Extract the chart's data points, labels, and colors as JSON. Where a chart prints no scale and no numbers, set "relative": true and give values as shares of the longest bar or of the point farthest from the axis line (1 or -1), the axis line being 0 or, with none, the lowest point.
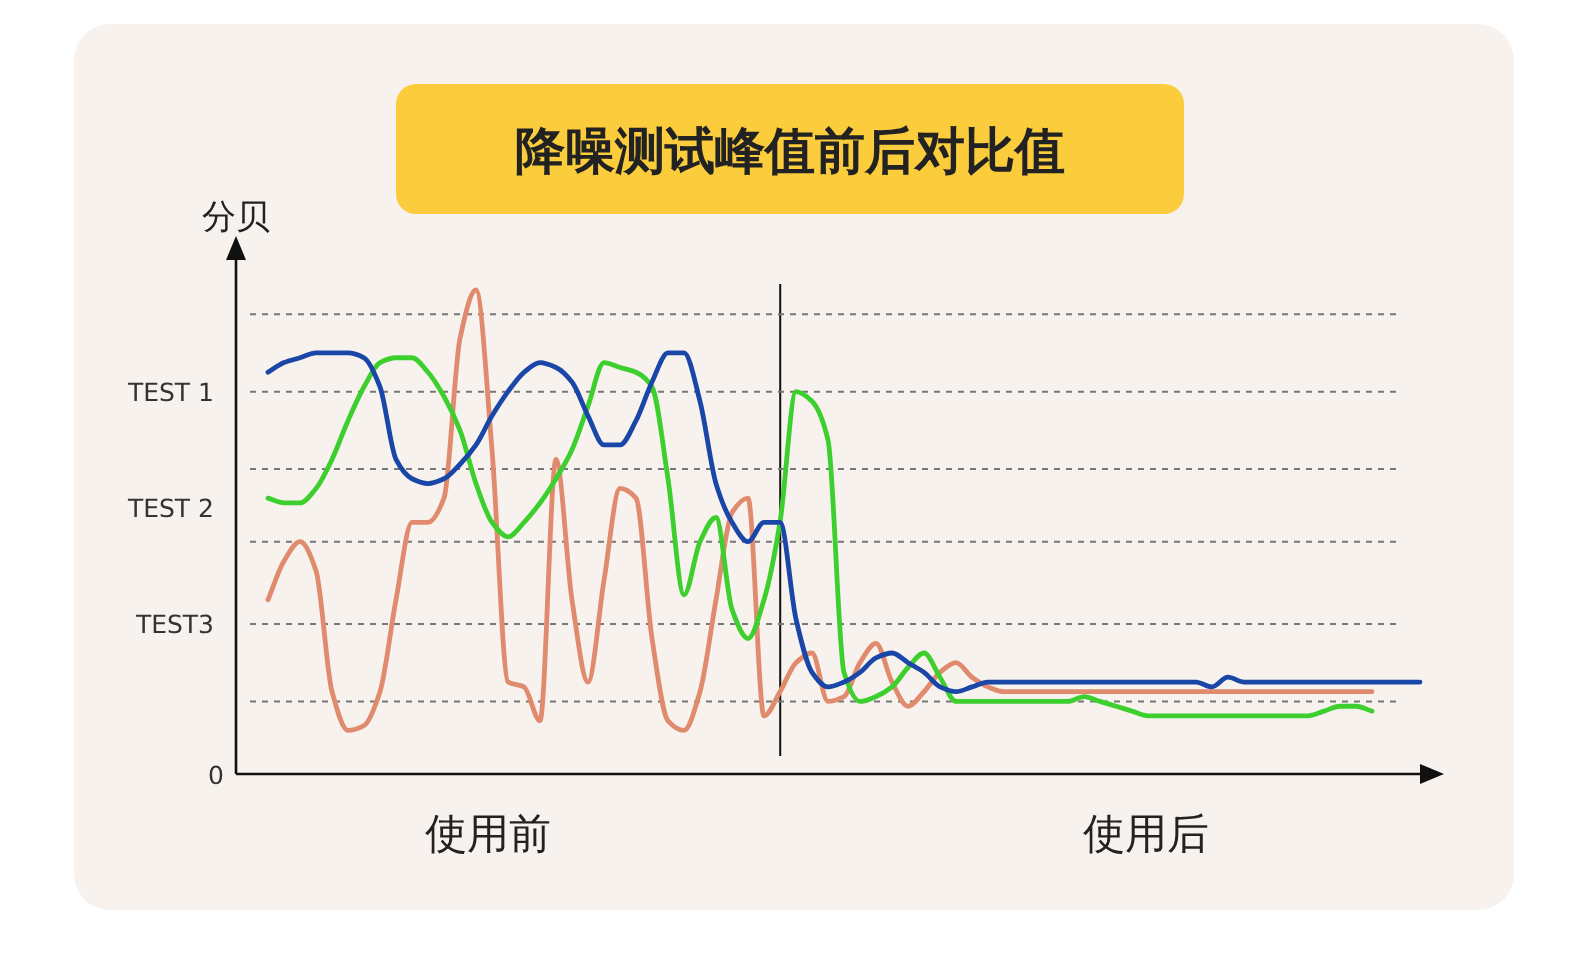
{
  "chart_data": {
    "type": "line",
    "title": "降噪测试峰值前后对比值",
    "ylabel": "分贝",
    "relative": true,
    "grid": false,
    "line_style": "solid",
    "marker": "none",
    "categories": [
      null,
      null,
      null,
      null,
      null,
      null,
      null,
      null,
      null,
      null,
      null,
      null,
      null,
      null,
      null,
      null,
      null,
      null,
      null,
      null,
      null,
      null,
      null,
      null,
      null,
      null,
      null,
      null,
      null,
      null,
      null,
      null,
      null,
      null,
      null,
      null,
      null,
      null,
      null,
      null,
      null,
      null,
      null,
      null,
      null,
      null,
      null,
      null,
      null,
      null,
      null,
      null,
      null,
      null,
      null,
      null,
      null,
      null,
      null,
      null,
      null,
      null,
      null,
      null,
      null,
      null,
      null,
      null,
      null,
      null,
      null,
      null,
      null,
      null
    ],
    "series": [
      {
        "color": "#e08a6e",
        "values": [
          null,
          0.36,
          0.44,
          0.48,
          0.42,
          0.17,
          0.09,
          0.1,
          0.17,
          0.36,
          0.52,
          0.52,
          0.57,
          0.9,
          1.0,
          0.67,
          0.19,
          0.18,
          0.11,
          0.65,
          0.36,
          0.19,
          0.4,
          0.59,
          0.57,
          0.28,
          0.11,
          0.09,
          0.17,
          0.36,
          0.54,
          0.57,
          0.12,
          0.17,
          0.23,
          0.25,
          0.15,
          0.16,
          0.23,
          0.27,
          0.19,
          0.14,
          0.17,
          0.21,
          0.23,
          0.2,
          0.18,
          0.17,
          0.17,
          0.17,
          0.17,
          0.17,
          0.17,
          0.17,
          0.17,
          0.17,
          0.17,
          0.17,
          0.17,
          0.17,
          0.17,
          0.17,
          0.17,
          0.17,
          0.17,
          0.17,
          0.17,
          0.17,
          0.17,
          0.17,
          0.17,
          null,
          null,
          null
        ]
      },
      {
        "color": "#3ccf2e",
        "values": [
          null,
          0.57,
          0.56,
          0.56,
          0.59,
          0.65,
          0.73,
          0.8,
          0.85,
          0.86,
          0.86,
          0.83,
          0.78,
          0.71,
          0.6,
          0.52,
          0.49,
          0.52,
          0.56,
          0.61,
          0.67,
          0.76,
          0.85,
          0.84,
          0.83,
          0.8,
          0.61,
          0.37,
          0.48,
          0.53,
          0.34,
          0.28,
          0.36,
          0.52,
          0.79,
          0.77,
          0.69,
          0.21,
          0.15,
          0.16,
          0.18,
          0.22,
          0.25,
          0.2,
          0.15,
          0.15,
          0.15,
          0.15,
          0.15,
          0.15,
          0.15,
          0.15,
          0.16,
          0.15,
          0.14,
          0.13,
          0.12,
          0.12,
          0.12,
          0.12,
          0.12,
          0.12,
          0.12,
          0.12,
          0.12,
          0.12,
          0.12,
          0.13,
          0.14,
          0.14,
          0.13,
          null,
          null,
          null
        ]
      },
      {
        "color": "#1a46a8",
        "values": [
          null,
          0.83,
          0.85,
          0.86,
          0.87,
          0.87,
          0.87,
          0.86,
          0.8,
          0.65,
          0.61,
          0.6,
          0.61,
          0.64,
          0.68,
          0.74,
          0.79,
          0.83,
          0.85,
          0.84,
          0.81,
          0.74,
          0.68,
          0.68,
          0.73,
          0.81,
          0.87,
          0.87,
          0.77,
          0.6,
          0.52,
          0.48,
          0.52,
          0.52,
          0.32,
          0.21,
          0.18,
          0.19,
          0.21,
          0.24,
          0.25,
          0.23,
          0.21,
          0.18,
          0.17,
          0.18,
          0.19,
          0.19,
          0.19,
          0.19,
          0.19,
          0.19,
          0.19,
          0.19,
          0.19,
          0.19,
          0.19,
          0.19,
          0.19,
          0.19,
          0.18,
          0.2,
          0.19,
          0.19,
          0.19,
          0.19,
          0.19,
          0.19,
          0.19,
          0.19,
          0.19,
          0.19,
          0.19,
          0.19
        ]
      }
    ],
    "ref_lines": [
      {
        "axis": "y",
        "value": 0.15,
        "line_style": "dotted"
      },
      {
        "axis": "y",
        "value": 0.31,
        "label": "TEST3",
        "line_style": "dotted"
      },
      {
        "axis": "y",
        "value": 0.48,
        "line_style": "dotted"
      },
      {
        "axis": "y",
        "value": 0.63,
        "line_style": "dotted"
      },
      {
        "axis": "y",
        "value": 0.79,
        "label": "TEST 1",
        "line_style": "dotted"
      },
      {
        "axis": "y",
        "value": 0.95,
        "line_style": "dotted"
      }
    ],
    "annotations": [
      "使用前",
      "使用后",
      "0",
      "TEST 2"
    ]
  }
}
